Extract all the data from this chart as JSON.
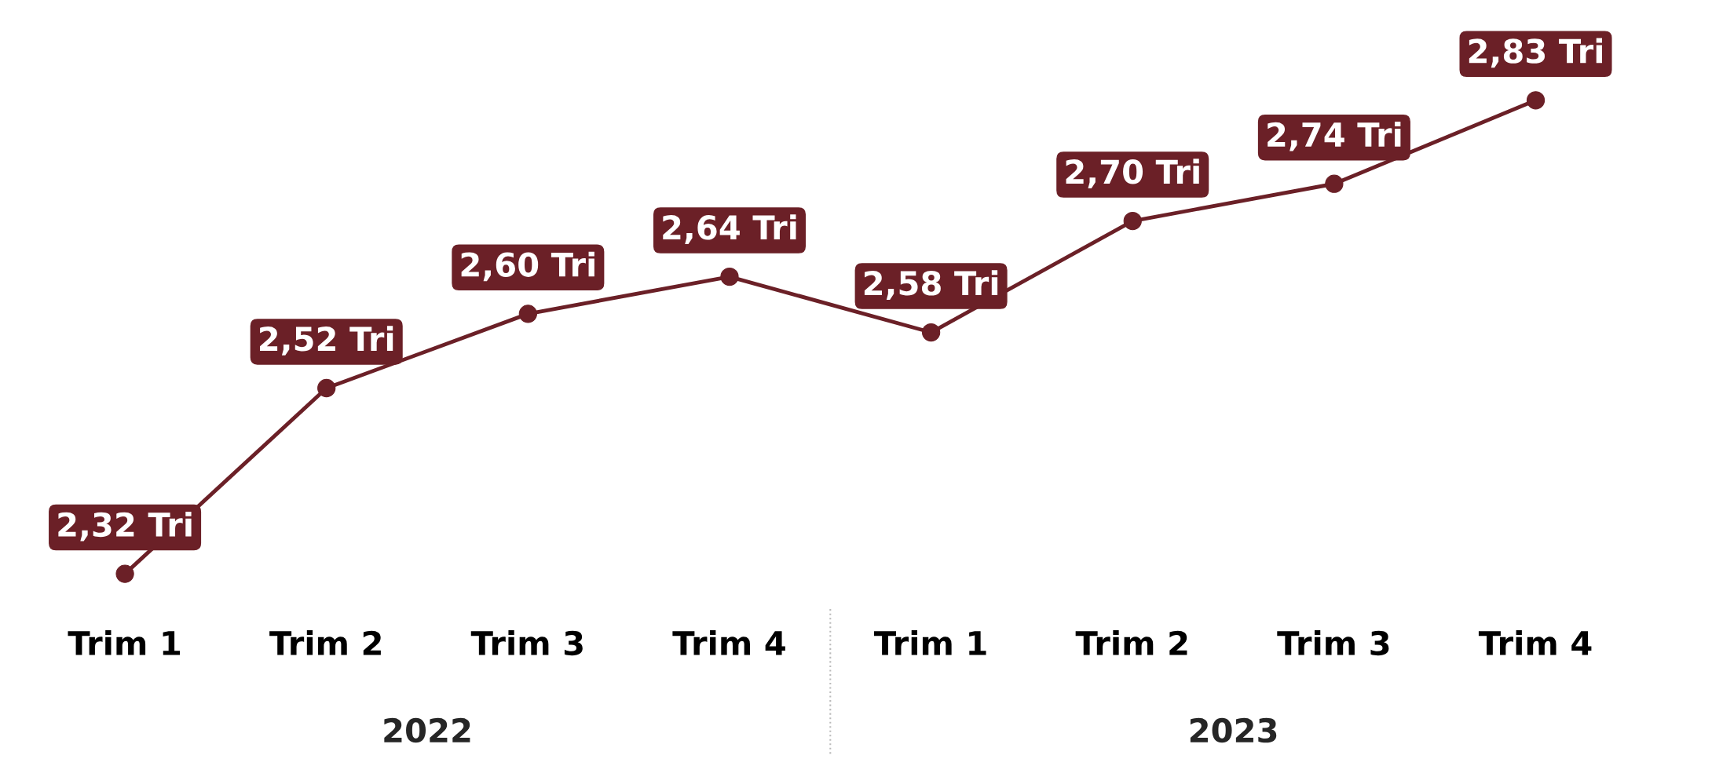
{
  "chart_data": {
    "type": "line",
    "categories": [
      "Trim 1",
      "Trim 2",
      "Trim 3",
      "Trim 4",
      "Trim 1",
      "Trim 2",
      "Trim 3",
      "Trim 4"
    ],
    "series": [
      {
        "color": "#6b2027",
        "values": [
          2.32,
          2.52,
          2.6,
          2.64,
          2.58,
          2.7,
          2.74,
          2.83
        ],
        "value_labels": [
          "2,32 Tri",
          "2,52 Tri",
          "2,60 Tri",
          "2,64 Tri",
          "2,58 Tri",
          "2,70 Tri",
          "2,74 Tri",
          "2,83 Tri"
        ]
      }
    ],
    "annotations": [
      "2022",
      "2023"
    ],
    "marker": "circle",
    "line_style": "solid",
    "grid": false,
    "legend": false,
    "tick_labels": "x"
  }
}
